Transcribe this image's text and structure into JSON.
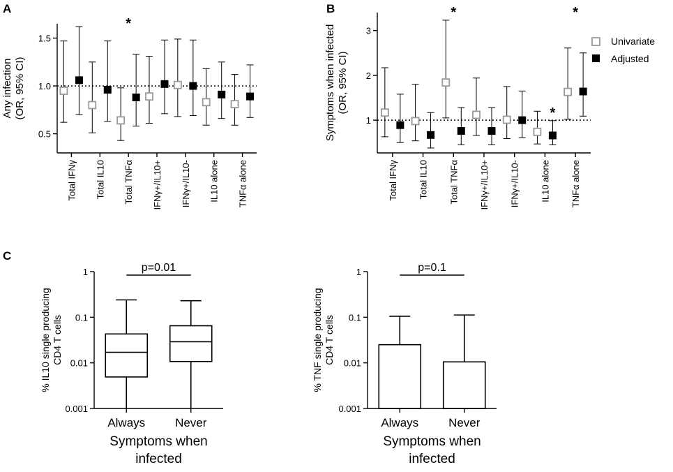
{
  "panels": {
    "a": {
      "label": "A"
    },
    "b": {
      "label": "B"
    },
    "c": {
      "label": "C"
    }
  },
  "legend": {
    "univariate": "Univariate",
    "adjusted": "Adjusted",
    "univariate_color": "#999999",
    "adjusted_color": "#000000"
  },
  "chart_data": [
    {
      "id": "A",
      "type": "scatter",
      "subtype": "forest-errorbar",
      "ylabel": [
        "Any infection",
        "(OR, 95% CI)"
      ],
      "ylim": [
        0.3,
        1.65
      ],
      "yticks": [
        0.5,
        1.0,
        1.5
      ],
      "ytick_labels": [
        "0.5",
        "1.0",
        "1.5"
      ],
      "reference_line": 1.0,
      "categories": [
        "Total IFNγ",
        "Total IL10",
        "Total TNFα",
        "IFNγ+/IL10+",
        "IFNγ+/IL10-",
        "IL10 alone",
        "TNFα alone"
      ],
      "series": [
        {
          "name": "Univariate",
          "marker": "open-square",
          "values": [
            0.95,
            0.8,
            0.64,
            0.89,
            1.01,
            0.83,
            0.81
          ],
          "lower": [
            0.62,
            0.51,
            0.43,
            0.61,
            0.68,
            0.59,
            0.59
          ],
          "upper": [
            1.47,
            1.25,
            0.98,
            1.31,
            1.49,
            1.18,
            1.12
          ]
        },
        {
          "name": "Adjusted",
          "marker": "filled-square",
          "values": [
            1.06,
            0.96,
            0.88,
            1.02,
            1.0,
            0.91,
            0.89
          ],
          "lower": [
            0.7,
            0.63,
            0.58,
            0.71,
            0.69,
            0.66,
            0.67
          ],
          "upper": [
            1.62,
            1.47,
            1.33,
            1.48,
            1.48,
            1.25,
            1.22
          ]
        }
      ],
      "annotations": [
        {
          "category": "Total TNFα",
          "text": "*"
        }
      ]
    },
    {
      "id": "B",
      "type": "scatter",
      "subtype": "forest-errorbar",
      "ylabel": [
        "Symptoms when infected",
        "(OR, 95% CI)"
      ],
      "ylim": [
        0.27,
        3.4
      ],
      "yticks": [
        1,
        2,
        3
      ],
      "ytick_labels": [
        "1",
        "2",
        "3"
      ],
      "reference_line": 1.0,
      "categories": [
        "Total IFNγ",
        "Total IL10",
        "Total TNFα",
        "IFNγ+/IL10+",
        "IFNγ+/IL10-",
        "IL10 alone",
        "TNFα alone"
      ],
      "series": [
        {
          "name": "Univariate",
          "marker": "open-square",
          "values": [
            1.17,
            0.98,
            1.84,
            1.12,
            1.01,
            0.74,
            1.63
          ],
          "lower": [
            0.63,
            0.54,
            1.05,
            0.66,
            0.59,
            0.47,
            1.02
          ],
          "upper": [
            2.17,
            1.8,
            3.23,
            1.94,
            1.75,
            1.2,
            2.61
          ]
        },
        {
          "name": "Adjusted",
          "marker": "filled-square",
          "values": [
            0.89,
            0.67,
            0.76,
            0.76,
            1.0,
            0.66,
            1.64
          ],
          "lower": [
            0.5,
            0.38,
            0.45,
            0.45,
            0.61,
            0.45,
            1.09
          ],
          "upper": [
            1.58,
            1.17,
            1.28,
            1.28,
            1.65,
            0.99,
            2.5
          ]
        }
      ],
      "annotations": [
        {
          "category": "Total TNFα",
          "text": "*"
        },
        {
          "category": "IL10 alone",
          "text": "*"
        },
        {
          "category": "TNFα alone",
          "text": "*"
        }
      ]
    },
    {
      "id": "C1",
      "type": "box",
      "ylabel": [
        "% IL10 single producing",
        "CD4 T cells"
      ],
      "yscale": "log",
      "ylim": [
        0.001,
        1
      ],
      "yticks": [
        0.001,
        0.01,
        0.1,
        1
      ],
      "ytick_labels": [
        "0.001",
        "0.01",
        "0.1",
        "1"
      ],
      "xlabel": [
        "Symptoms when",
        "infected"
      ],
      "categories": [
        "Always",
        "Never"
      ],
      "boxes": [
        {
          "whisker_low": 0.001,
          "q1": 0.0049,
          "median": 0.017,
          "q3": 0.043,
          "whisker_high": 0.24
        },
        {
          "whisker_low": 0.001,
          "q1": 0.0107,
          "median": 0.029,
          "q3": 0.065,
          "whisker_high": 0.23
        }
      ],
      "comparison": {
        "text": "p=0.01"
      }
    },
    {
      "id": "C2",
      "type": "box",
      "ylabel": [
        "% TNF single producing",
        "CD4 T cells"
      ],
      "yscale": "log",
      "ylim": [
        0.001,
        1
      ],
      "yticks": [
        0.001,
        0.01,
        0.1,
        1
      ],
      "ytick_labels": [
        "0.001",
        "0.01",
        "0.1",
        "1"
      ],
      "xlabel": [
        "Symptoms when",
        "infected"
      ],
      "categories": [
        "Always",
        "Never"
      ],
      "boxes": [
        {
          "whisker_low": 0.001,
          "q1": 0.001,
          "median": 0.001,
          "q3": 0.025,
          "whisker_high": 0.105
        },
        {
          "whisker_low": 0.001,
          "q1": 0.001,
          "median": 0.001,
          "q3": 0.0105,
          "whisker_high": 0.112
        }
      ],
      "comparison": {
        "text": "p=0.1"
      }
    }
  ]
}
